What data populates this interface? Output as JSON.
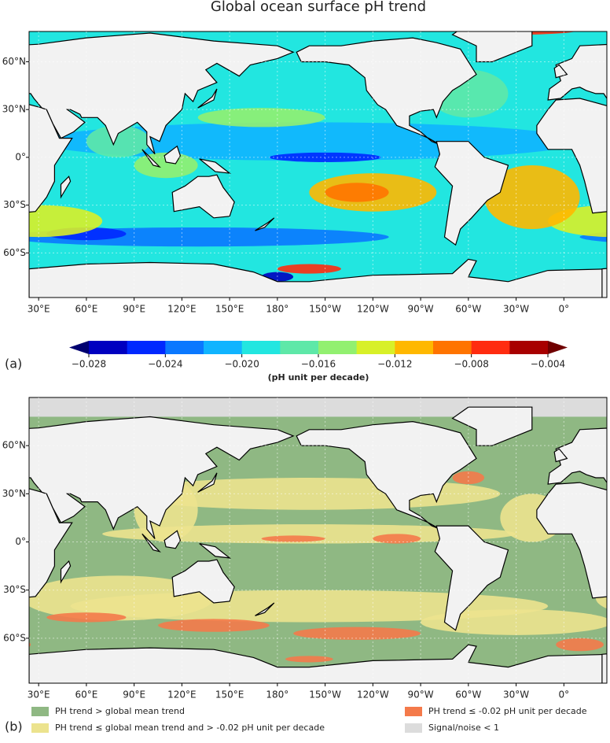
{
  "title": "Global ocean surface pH trend",
  "panels": [
    {
      "label": "(a)",
      "lonlim": [
        24,
        387
      ],
      "latlim": [
        -88,
        79
      ],
      "lon_ticks": [
        {
          "value": 30,
          "label": "30°E"
        },
        {
          "value": 60,
          "label": "60°E"
        },
        {
          "value": 90,
          "label": "90°E"
        },
        {
          "value": 120,
          "label": "120°E"
        },
        {
          "value": 150,
          "label": "150°E"
        },
        {
          "value": 180,
          "label": "180°"
        },
        {
          "value": 210,
          "label": "150°W"
        },
        {
          "value": 240,
          "label": "120°W"
        },
        {
          "value": 270,
          "label": "90°W"
        },
        {
          "value": 300,
          "label": "60°W"
        },
        {
          "value": 330,
          "label": "30°W"
        },
        {
          "value": 360,
          "label": "0°"
        }
      ],
      "lat_ticks": [
        {
          "value": 60,
          "label": "60°N"
        },
        {
          "value": 30,
          "label": "30°N"
        },
        {
          "value": 0,
          "label": "0°"
        },
        {
          "value": -30,
          "label": "30°S"
        },
        {
          "value": -60,
          "label": "60°S"
        }
      ],
      "colorbar": {
        "label": "(pH unit per decade)",
        "lim": [
          -0.028,
          -0.004
        ],
        "ticks": [
          {
            "value": -0.028,
            "label": "−0.028"
          },
          {
            "value": -0.024,
            "label": "−0.024"
          },
          {
            "value": -0.02,
            "label": "−0.020"
          },
          {
            "value": -0.016,
            "label": "−0.016"
          },
          {
            "value": -0.012,
            "label": "−0.012"
          },
          {
            "value": -0.008,
            "label": "−0.008"
          },
          {
            "value": -0.004,
            "label": "−0.004"
          }
        ],
        "colors": [
          "#0000c0",
          "#0028ff",
          "#0a78ff",
          "#10b4ff",
          "#22e6e0",
          "#5ee8a8",
          "#92f070",
          "#d8f028",
          "#ffb800",
          "#ff7400",
          "#ff2c10",
          "#a80000"
        ],
        "extend_colors": [
          "#000070",
          "#700000"
        ]
      }
    },
    {
      "label": "(b)",
      "lonlim": [
        24,
        387
      ],
      "latlim": [
        -88,
        90
      ],
      "lon_ticks": [
        {
          "value": 30,
          "label": "30°E"
        },
        {
          "value": 60,
          "label": "60°E"
        },
        {
          "value": 90,
          "label": "90°E"
        },
        {
          "value": 120,
          "label": "120°E"
        },
        {
          "value": 150,
          "label": "150°E"
        },
        {
          "value": 180,
          "label": "180°"
        },
        {
          "value": 210,
          "label": "150°W"
        },
        {
          "value": 240,
          "label": "120°W"
        },
        {
          "value": 270,
          "label": "90°W"
        },
        {
          "value": 300,
          "label": "60°W"
        },
        {
          "value": 330,
          "label": "30°W"
        },
        {
          "value": 360,
          "label": "0°"
        }
      ],
      "lat_ticks": [
        {
          "value": 60,
          "label": "60°N"
        },
        {
          "value": 30,
          "label": "30°N"
        },
        {
          "value": 0,
          "label": "0°"
        },
        {
          "value": -30,
          "label": "30°S"
        },
        {
          "value": -60,
          "label": "60°S"
        }
      ],
      "legend": [
        {
          "name": "PH trend > global mean trend",
          "color": "#8fb883"
        },
        {
          "name": "PH trend ≤ -0.02 pH unit per decade",
          "color": "#f47a4a"
        },
        {
          "name": "PH trend ≤ global mean trend and > -0.02 pH unit per decade",
          "color": "#ece38e"
        },
        {
          "name": "Signal/noise < 1",
          "color": "#dcdcdc"
        }
      ]
    }
  ]
}
